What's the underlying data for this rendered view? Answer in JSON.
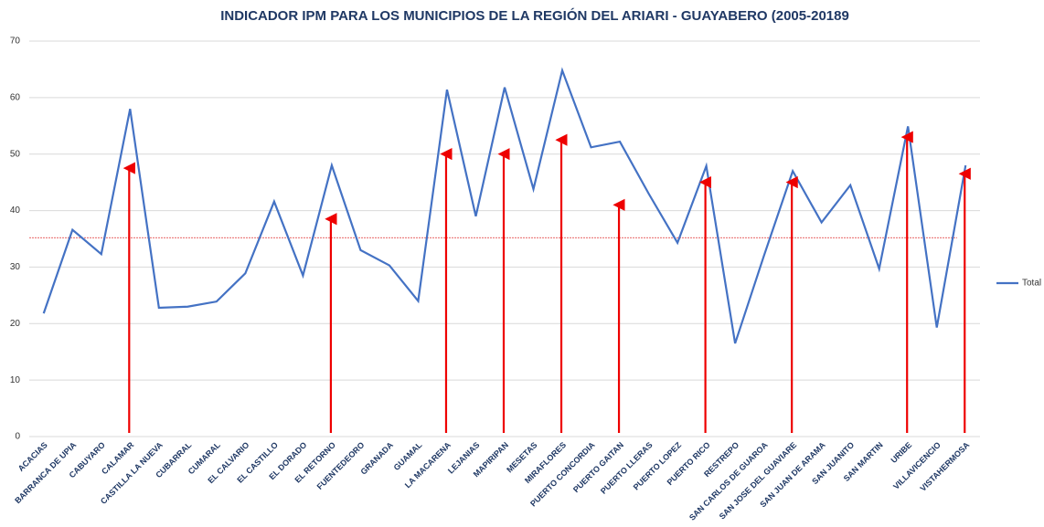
{
  "chart_data": {
    "type": "line",
    "title": "INDICADOR IPM PARA LOS MUNICIPIOS DE LA REGIÓN DEL ARIARI - GUAYABERO (2005-20189",
    "categories": [
      "ACACIAS",
      "BARRANCA DE UPIA",
      "CABUYARO",
      "CALAMAR",
      "CASTILLA LA NUEVA",
      "CUBARRAL",
      "CUMARAL",
      "EL CALVARIO",
      "EL CASTILLO",
      "EL DORADO",
      "EL RETORNO",
      "FUENTEDEORO",
      "GRANADA",
      "GUAMAL",
      "LA MACARENA",
      "LEJANIAS",
      "MAPIRIPAN",
      "MESETAS",
      "MIRAFLORES",
      "PUERTO CONCORDIA",
      "PUERTO GAITAN",
      "PUERTO LLERAS",
      "PUERTO LOPEZ",
      "PUERTO RICO",
      "RESTREPO",
      "SAN CARLOS DE GUAROA",
      "SAN JOSE DEL GUAVIARE",
      "SAN JUAN DE ARAMA",
      "SAN JUANITO",
      "SAN MARTIN",
      "URIBE",
      "VILLAVICENCIO",
      "VISTAHERMOSA"
    ],
    "series": [
      {
        "name": "Total",
        "color": "#4472c4",
        "values": [
          21.8,
          36.6,
          32.3,
          58,
          22.8,
          23,
          23.9,
          28.9,
          41.6,
          28.5,
          48,
          33,
          30.3,
          24,
          61.4,
          39,
          61.8,
          43.8,
          64.8,
          51.2,
          52.2,
          43,
          34.3,
          47.9,
          16.5,
          32,
          47,
          37.9,
          44.5,
          29.7,
          54.9,
          19.3,
          48
        ]
      }
    ],
    "reference_line": {
      "value": 35.2,
      "color": "#e03030"
    },
    "arrows": {
      "color": "#ee0000",
      "categories": [
        "CALAMAR",
        "EL RETORNO",
        "LA MACARENA",
        "MAPIRIPAN",
        "MIRAFLORES",
        "PUERTO GAITAN",
        "PUERTO RICO",
        "SAN JOSE DEL GUAVIARE",
        "URIBE",
        "VISTAHERMOSA"
      ],
      "values": [
        48,
        39,
        50.5,
        50.5,
        53,
        41.5,
        45.5,
        45.5,
        53.5,
        47
      ]
    },
    "ylim": [
      0,
      70
    ],
    "yticks": [
      0,
      10,
      20,
      30,
      40,
      50,
      60,
      70
    ],
    "grid": true,
    "legend": "right"
  }
}
